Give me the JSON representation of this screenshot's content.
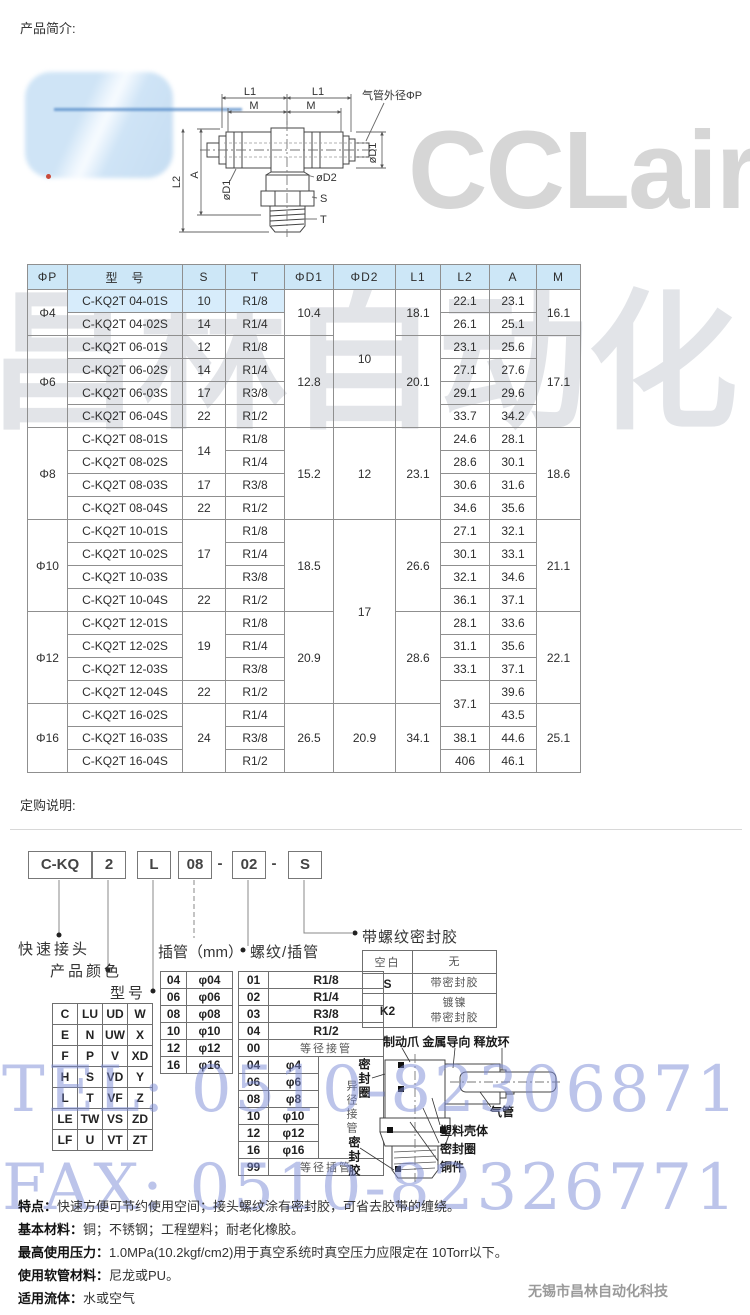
{
  "page": {
    "intro_label": "产品简介:",
    "order_label": "定购说明:",
    "footer": "无锡市昌林自动化科技"
  },
  "watermarks": {
    "logo_text": "CCLair",
    "cn_text": "昌林自动化",
    "tel": "TEL: 0510-82306871",
    "fax": "FAX: 0510-82326771"
  },
  "diagram": {
    "labels": {
      "l1": "L1",
      "m": "M",
      "tube_od": "气管外径ΦP",
      "d1": "øD1",
      "d2": "øD2",
      "s": "S",
      "t": "T",
      "a": "A",
      "l2": "L2"
    }
  },
  "spec_table": {
    "headers": [
      "ΦP",
      "型　号",
      "S",
      "T",
      "ΦD1",
      "ΦD2",
      "L1",
      "L2",
      "A",
      "M"
    ],
    "rows": [
      [
        {
          "t": "Φ4",
          "rs": 2
        },
        {
          "t": "C-KQ2T 04-01S",
          "hl": 1
        },
        {
          "t": "10",
          "hl": 1
        },
        {
          "t": "R1/8",
          "hl": 1
        },
        {
          "t": "10.4",
          "rs": 2
        },
        {
          "t": "10",
          "rs": 6
        },
        {
          "t": "18.1",
          "rs": 2
        },
        "22.1",
        "23.1",
        {
          "t": "16.1",
          "rs": 2
        }
      ],
      [
        "C-KQ2T 04-02S",
        "14",
        "R1/4",
        "26.1",
        "25.1"
      ],
      [
        {
          "t": "Φ6",
          "rs": 4
        },
        "C-KQ2T 06-01S",
        "12",
        "R1/8",
        {
          "t": "12.8",
          "rs": 4
        },
        {
          "t": "20.1",
          "rs": 4
        },
        "23.1",
        "25.6",
        {
          "t": "17.1",
          "rs": 4
        }
      ],
      [
        "C-KQ2T 06-02S",
        "14",
        "R1/4",
        "27.1",
        "27.6"
      ],
      [
        "C-KQ2T 06-03S",
        "17",
        "R3/8",
        "29.1",
        "29.6"
      ],
      [
        "C-KQ2T 06-04S",
        "22",
        "R1/2",
        "33.7",
        "34.2"
      ],
      [
        {
          "t": "Φ8",
          "rs": 4
        },
        "C-KQ2T 08-01S",
        {
          "t": "14",
          "rs": 2
        },
        "R1/8",
        {
          "t": "15.2",
          "rs": 4
        },
        {
          "t": "12",
          "rs": 4
        },
        {
          "t": "23.1",
          "rs": 4
        },
        "24.6",
        "28.1",
        {
          "t": "18.6",
          "rs": 4
        }
      ],
      [
        "C-KQ2T 08-02S",
        "R1/4",
        "28.6",
        "30.1"
      ],
      [
        "C-KQ2T 08-03S",
        "17",
        "R3/8",
        "30.6",
        "31.6"
      ],
      [
        "C-KQ2T 08-04S",
        "22",
        "R1/2",
        "34.6",
        "35.6"
      ],
      [
        {
          "t": "Φ10",
          "rs": 4
        },
        "C-KQ2T 10-01S",
        {
          "t": "17",
          "rs": 3
        },
        "R1/8",
        {
          "t": "18.5",
          "rs": 4
        },
        {
          "t": "17",
          "rs": 8
        },
        {
          "t": "26.6",
          "rs": 4
        },
        "27.1",
        "32.1",
        {
          "t": "21.1",
          "rs": 4
        }
      ],
      [
        "C-KQ2T 10-02S",
        "R1/4",
        "30.1",
        "33.1"
      ],
      [
        "C-KQ2T 10-03S",
        "R3/8",
        "32.1",
        "34.6"
      ],
      [
        "C-KQ2T 10-04S",
        "22",
        "R1/2",
        "36.1",
        "37.1"
      ],
      [
        {
          "t": "Φ12",
          "rs": 4
        },
        "C-KQ2T 12-01S",
        {
          "t": "19",
          "rs": 3
        },
        "R1/8",
        {
          "t": "20.9",
          "rs": 4
        },
        {
          "t": "28.6",
          "rs": 4
        },
        "28.1",
        "33.6",
        {
          "t": "22.1",
          "rs": 4
        }
      ],
      [
        "C-KQ2T 12-02S",
        "R1/4",
        "31.1",
        "35.6"
      ],
      [
        "C-KQ2T 12-03S",
        "R3/8",
        "33.1",
        "37.1"
      ],
      [
        "C-KQ2T 12-04S",
        "22",
        "R1/2",
        {
          "t": "37.1",
          "rs": 2
        },
        "39.6"
      ],
      [
        {
          "t": "Φ16",
          "rs": 3
        },
        "C-KQ2T 16-02S",
        {
          "t": "24",
          "rs": 3
        },
        "R1/4",
        {
          "t": "26.5",
          "rs": 3
        },
        {
          "t": "20.9",
          "rs": 3
        },
        {
          "t": "34.1",
          "rs": 3
        },
        "43.5",
        {
          "t": "25.1",
          "rs": 3
        }
      ],
      [
        "C-KQ2T 16-03S",
        "R3/8",
        "38.1",
        "44.6"
      ],
      [
        "C-KQ2T 16-04S",
        "R1/2",
        "406",
        "46.1"
      ]
    ]
  },
  "order_code": {
    "boxes": [
      "C-KQ",
      "2",
      "L",
      "08",
      "02",
      "S"
    ],
    "separator": "-",
    "callouts": {
      "quick_connector": "快速接头",
      "product_color": "产品颜色",
      "model": "型号",
      "tube_mm": "插管（mm）",
      "thread_tube": "螺纹/插管",
      "seal": "带螺纹密封胶"
    },
    "color_table": [
      [
        "C",
        "LU",
        "UD",
        "W"
      ],
      [
        "E",
        "N",
        "UW",
        "X"
      ],
      [
        "F",
        "P",
        "V",
        "XD"
      ],
      [
        "H",
        "S",
        "VD",
        "Y"
      ],
      [
        "L",
        "T",
        "VF",
        "Z"
      ],
      [
        "LE",
        "TW",
        "VS",
        "ZD"
      ],
      [
        "LF",
        "U",
        "VT",
        "ZT"
      ]
    ],
    "tube_table": [
      [
        "04",
        "φ04"
      ],
      [
        "06",
        "φ06"
      ],
      [
        "08",
        "φ08"
      ],
      [
        "10",
        "φ10"
      ],
      [
        "12",
        "φ12"
      ],
      [
        "16",
        "φ16"
      ]
    ],
    "thread_table": {
      "full_rows_top": [
        [
          "01",
          "R1/8"
        ],
        [
          "02",
          "R1/4"
        ],
        [
          "03",
          "R3/8"
        ],
        [
          "04",
          "R1/2"
        ],
        [
          "00",
          "等径接管"
        ]
      ],
      "split_rows": [
        [
          "04",
          "φ4"
        ],
        [
          "06",
          "φ6"
        ],
        [
          "08",
          "φ8"
        ],
        [
          "10",
          "φ10"
        ],
        [
          "12",
          "φ12"
        ],
        [
          "16",
          "φ16"
        ]
      ],
      "side_label": "异径接管",
      "full_rows_bottom": [
        [
          "99",
          "等径插管"
        ]
      ]
    },
    "seal_table": [
      [
        "空白",
        "无"
      ],
      [
        "S",
        "带密封胶"
      ],
      [
        "K2",
        "镀镍\n带密封胶"
      ]
    ]
  },
  "assembly": {
    "top_label": "制动爪 金属导向 释放环",
    "left_label": "密封圈",
    "tube_label": "气管",
    "shell_label": "塑料壳体",
    "seal_label": "密封圈",
    "brass_label": "铜件",
    "glue_label": "密封胶"
  },
  "notes": [
    {
      "label": "特点：",
      "text": "快速方便可节约使用空间；接头螺纹涂有密封胶，可省去胶带的缠绕。"
    },
    {
      "label": "基本材料：",
      "text": "铜；不锈钢；工程塑料；耐老化橡胶。"
    },
    {
      "label": "最高使用压力：",
      "text": "1.0MPa(10.2kgf/cm2)用于真空系统时真空压力应限定在 10Torr以下。"
    },
    {
      "label": "使用软管材料：",
      "text": "尼龙或PU。"
    },
    {
      "label": "适用流体：",
      "text": "水或空气"
    }
  ]
}
